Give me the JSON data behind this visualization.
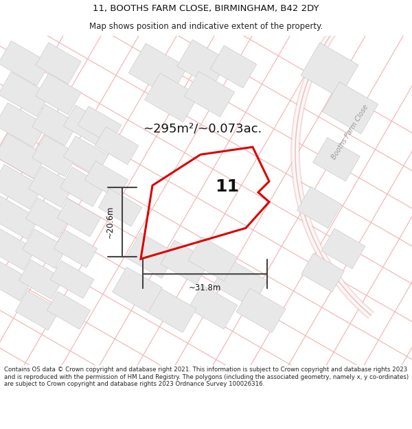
{
  "title_line1": "11, BOOTHS FARM CLOSE, BIRMINGHAM, B42 2DY",
  "title_line2": "Map shows position and indicative extent of the property.",
  "area_label": "~295m²/~0.073ac.",
  "house_number": "11",
  "width_label": "~31.8m",
  "height_label": "~20.6m",
  "footer_text": "Contains OS data © Crown copyright and database right 2021. This information is subject to Crown copyright and database rights 2023 and is reproduced with the permission of HM Land Registry. The polygons (including the associated geometry, namely x, y co-ordinates) are subject to Crown copyright and database rights 2023 Ordnance Survey 100026316.",
  "background_color": "#ffffff",
  "plot_outline_color": "#dd0000",
  "road_color": "#f2b8b8",
  "road_label": "Booths Farm Close",
  "building_fill": "#e8e8e8",
  "building_stroke": "#cccccc",
  "dimension_color": "#444444",
  "figsize": [
    6.0,
    6.25
  ],
  "dpi": 100,
  "title_fontsize": 9.5,
  "subtitle_fontsize": 8.5,
  "area_fontsize": 13,
  "number_fontsize": 18,
  "dim_fontsize": 8.5,
  "footer_fontsize": 6.2
}
